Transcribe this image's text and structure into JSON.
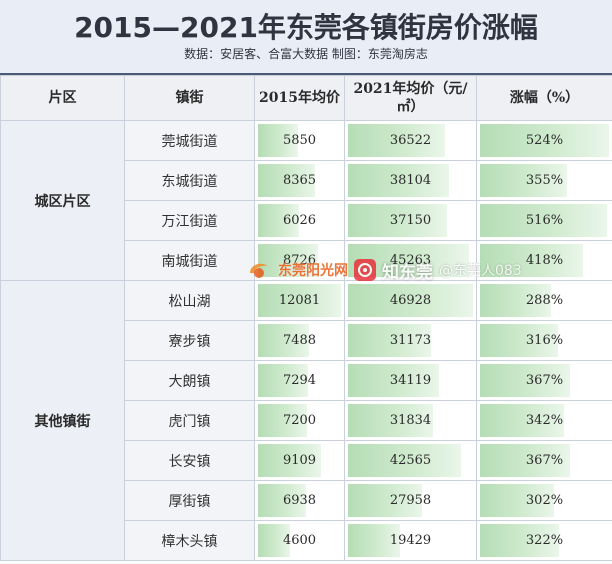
{
  "header": {
    "title": "2015—2021年东莞各镇街房价涨幅",
    "source": "数据：安居客、合富大数据   制图：东莞淘房志"
  },
  "columns": {
    "district": "片区",
    "town": "镇街",
    "price2015": "2015年均价",
    "price2021": "2021年均价（元/㎡）",
    "increase": "涨幅（%）"
  },
  "colors": {
    "bar_start": "#b5ddb5",
    "bar_end": "#eaf6ea",
    "header_border": "#4b5a78"
  },
  "groups": [
    {
      "district": "城区片区",
      "rows": [
        {
          "town": "莞城街道",
          "price2015": 5850,
          "price2021": 36522,
          "increase": "524%"
        },
        {
          "town": "东城街道",
          "price2015": 8365,
          "price2021": 38104,
          "increase": "355%"
        },
        {
          "town": "万江街道",
          "price2015": 6026,
          "price2021": 37150,
          "increase": "516%"
        },
        {
          "town": "南城街道",
          "price2015": 8726,
          "price2021": 45263,
          "increase": "418%"
        }
      ]
    },
    {
      "district": "其他镇街",
      "rows": [
        {
          "town": "松山湖",
          "price2015": 12081,
          "price2021": 46928,
          "increase": "288%"
        },
        {
          "town": "寮步镇",
          "price2015": 7488,
          "price2021": 31173,
          "increase": "316%"
        },
        {
          "town": "大朗镇",
          "price2015": 7294,
          "price2021": 34119,
          "increase": "367%"
        },
        {
          "town": "虎门镇",
          "price2015": 7200,
          "price2021": 31834,
          "increase": "342%"
        },
        {
          "town": "长安镇",
          "price2015": 9109,
          "price2021": 42565,
          "increase": "367%"
        },
        {
          "town": "厚街镇",
          "price2015": 6938,
          "price2021": 27958,
          "increase": "302%"
        },
        {
          "town": "樟木头镇",
          "price2015": 4600,
          "price2021": 19429,
          "increase": "322%"
        }
      ]
    }
  ],
  "watermark": {
    "text1": "东莞阳光网",
    "text2": "知东莞",
    "text3": "@东莞人083"
  }
}
